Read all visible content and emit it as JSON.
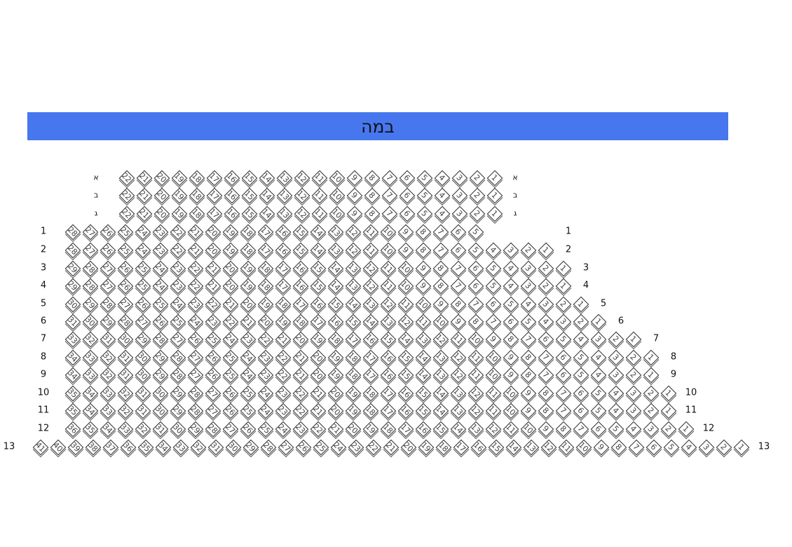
{
  "stage": {
    "label": "במה",
    "color": "#4677ee"
  },
  "rows": [
    {
      "label": "א",
      "seats": [
        22,
        21,
        20,
        19,
        18,
        17,
        16,
        15,
        14,
        13,
        12,
        11,
        10,
        9,
        8,
        7,
        6,
        5,
        4,
        3,
        2,
        1
      ]
    },
    {
      "label": "ב",
      "seats": [
        22,
        21,
        20,
        19,
        18,
        17,
        16,
        15,
        14,
        13,
        12,
        11,
        10,
        9,
        8,
        7,
        6,
        5,
        4,
        3,
        2,
        1
      ]
    },
    {
      "label": "ג",
      "seats": [
        22,
        21,
        20,
        19,
        18,
        17,
        16,
        15,
        14,
        13,
        12,
        11,
        10,
        9,
        8,
        7,
        6,
        5,
        4,
        3,
        2,
        1
      ]
    },
    {
      "label": "1",
      "seats": [
        28,
        27,
        26,
        25,
        24,
        23,
        22,
        21,
        20,
        19,
        18,
        17,
        16,
        15,
        14,
        13,
        12,
        11,
        10,
        9,
        8,
        7,
        6,
        5
      ]
    },
    {
      "label": "2",
      "seats": [
        28,
        27,
        26,
        25,
        24,
        23,
        22,
        21,
        20,
        19,
        18,
        17,
        16,
        15,
        14,
        13,
        12,
        11,
        10,
        9,
        8,
        7,
        6,
        5,
        4,
        3,
        2,
        1
      ]
    },
    {
      "label": "3",
      "seats": [
        29,
        28,
        27,
        26,
        25,
        24,
        23,
        22,
        21,
        20,
        19,
        18,
        17,
        16,
        15,
        14,
        13,
        12,
        11,
        10,
        9,
        8,
        7,
        6,
        5,
        4,
        3,
        2,
        1
      ]
    },
    {
      "label": "4",
      "seats": [
        29,
        28,
        27,
        26,
        25,
        24,
        23,
        22,
        21,
        20,
        19,
        18,
        17,
        16,
        15,
        14,
        13,
        12,
        11,
        10,
        9,
        8,
        7,
        6,
        5,
        4,
        3,
        2,
        1
      ]
    },
    {
      "label": "5",
      "seats": [
        30,
        29,
        28,
        27,
        26,
        25,
        24,
        23,
        22,
        21,
        20,
        19,
        18,
        17,
        16,
        15,
        14,
        13,
        12,
        11,
        10,
        9,
        8,
        7,
        6,
        5,
        4,
        3,
        2,
        1
      ]
    },
    {
      "label": "6",
      "seats": [
        31,
        30,
        29,
        28,
        27,
        26,
        25,
        24,
        23,
        22,
        21,
        20,
        19,
        18,
        17,
        16,
        15,
        14,
        13,
        12,
        11,
        10,
        9,
        8,
        7,
        6,
        5,
        4,
        3,
        2,
        1
      ]
    },
    {
      "label": "7",
      "seats": [
        33,
        32,
        31,
        30,
        29,
        28,
        27,
        26,
        25,
        24,
        23,
        22,
        21,
        20,
        19,
        18,
        17,
        16,
        15,
        14,
        13,
        12,
        11,
        10,
        9,
        8,
        7,
        6,
        5,
        4,
        3,
        2,
        1
      ]
    },
    {
      "label": "8",
      "seats": [
        34,
        33,
        32,
        31,
        30,
        29,
        28,
        27,
        26,
        25,
        24,
        23,
        22,
        21,
        20,
        19,
        18,
        17,
        16,
        15,
        14,
        13,
        12,
        11,
        10,
        9,
        8,
        7,
        6,
        5,
        4,
        3,
        2,
        1
      ]
    },
    {
      "label": "9",
      "seats": [
        34,
        33,
        32,
        31,
        30,
        29,
        28,
        27,
        26,
        25,
        24,
        23,
        22,
        21,
        20,
        19,
        18,
        17,
        16,
        15,
        14,
        13,
        12,
        11,
        10,
        9,
        8,
        7,
        6,
        5,
        4,
        3,
        2,
        1
      ]
    },
    {
      "label": "10",
      "seats": [
        35,
        34,
        33,
        32,
        31,
        30,
        29,
        28,
        27,
        26,
        25,
        24,
        23,
        22,
        21,
        20,
        19,
        18,
        17,
        16,
        15,
        14,
        13,
        12,
        11,
        10,
        9,
        8,
        7,
        6,
        5,
        4,
        3,
        2,
        1
      ]
    },
    {
      "label": "11",
      "seats": [
        35,
        34,
        33,
        32,
        31,
        30,
        29,
        28,
        27,
        26,
        25,
        24,
        23,
        22,
        21,
        20,
        19,
        18,
        17,
        16,
        15,
        14,
        13,
        12,
        11,
        10,
        9,
        8,
        7,
        6,
        5,
        4,
        3,
        2,
        1
      ]
    },
    {
      "label": "12",
      "seats": [
        36,
        35,
        34,
        33,
        32,
        31,
        30,
        29,
        28,
        27,
        26,
        25,
        24,
        23,
        22,
        21,
        20,
        19,
        18,
        17,
        16,
        15,
        14,
        13,
        12,
        11,
        10,
        9,
        8,
        7,
        6,
        5,
        4,
        3,
        2,
        1
      ]
    },
    {
      "label": "13",
      "seats": [
        41,
        40,
        39,
        38,
        37,
        36,
        35,
        34,
        33,
        32,
        31,
        30,
        29,
        28,
        27,
        26,
        25,
        24,
        23,
        22,
        21,
        20,
        19,
        18,
        17,
        16,
        15,
        14,
        13,
        12,
        11,
        10,
        9,
        8,
        7,
        6,
        5,
        4,
        3,
        2,
        1
      ]
    }
  ]
}
